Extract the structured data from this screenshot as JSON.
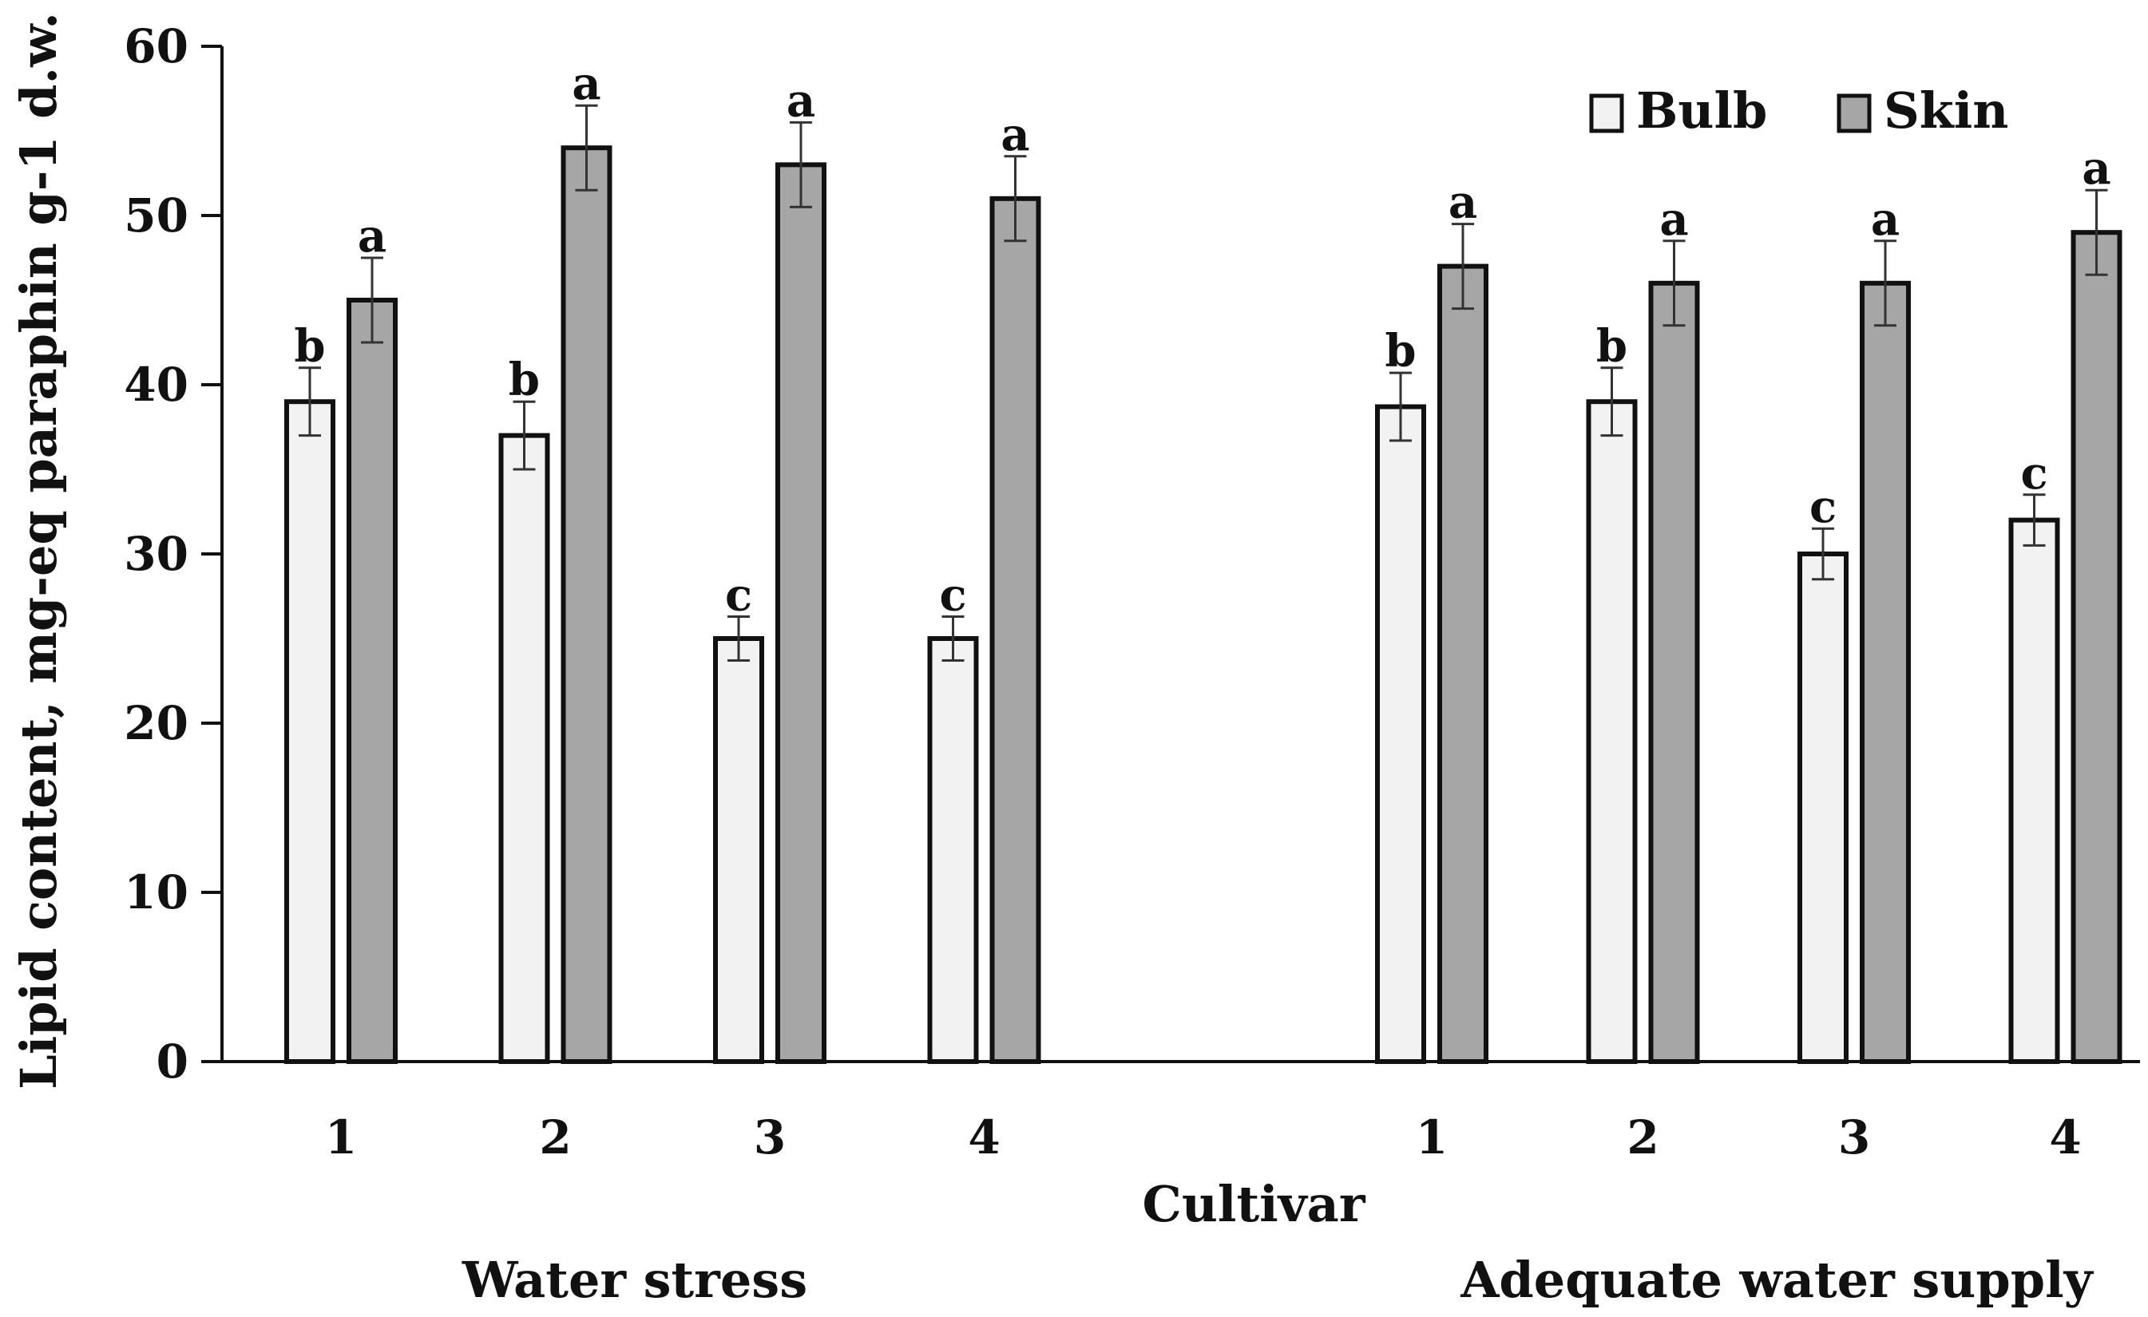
{
  "chart_data": {
    "type": "bar",
    "xlabel": "Cultivar",
    "ylabel": "Lipid content, mg-eq paraphin g-1 d.w.",
    "ylim": [
      0,
      60
    ],
    "yticks": [
      "0",
      "10",
      "20",
      "30",
      "40",
      "50",
      "60"
    ],
    "legend_position": "top-right",
    "grid": false,
    "groups": [
      {
        "label": "Water stress",
        "categories": [
          "1",
          "2",
          "3",
          "4"
        ],
        "series": [
          {
            "name": "Bulb",
            "values": [
              39,
              37,
              25,
              25
            ],
            "errors": [
              2,
              2,
              1.3,
              1.3
            ],
            "letters": [
              "b",
              "b",
              "c",
              "c"
            ]
          },
          {
            "name": "Skin",
            "values": [
              45,
              54,
              53,
              51
            ],
            "errors": [
              2.5,
              2.5,
              2.5,
              2.5
            ],
            "letters": [
              "a",
              "a",
              "a",
              "a"
            ]
          }
        ]
      },
      {
        "label": "Adequate water supply",
        "categories": [
          "1",
          "2",
          "3",
          "4"
        ],
        "series": [
          {
            "name": "Bulb",
            "values": [
              38.7,
              39,
              30,
              32
            ],
            "errors": [
              2,
              2,
              1.5,
              1.5
            ],
            "letters": [
              "b",
              "b",
              "c",
              "c"
            ]
          },
          {
            "name": "Skin",
            "values": [
              47,
              46,
              46,
              49
            ],
            "errors": [
              2.5,
              2.5,
              2.5,
              2.5
            ],
            "letters": [
              "a",
              "a",
              "a",
              "a"
            ]
          }
        ]
      }
    ],
    "legend": [
      {
        "name": "Bulb",
        "color": "#f2f2f2"
      },
      {
        "name": "Skin",
        "color": "#a6a6a6"
      }
    ],
    "colors": {
      "bulb": "#f2f2f2",
      "skin": "#a6a6a6",
      "stroke": "#111111",
      "error": "#333333"
    }
  }
}
